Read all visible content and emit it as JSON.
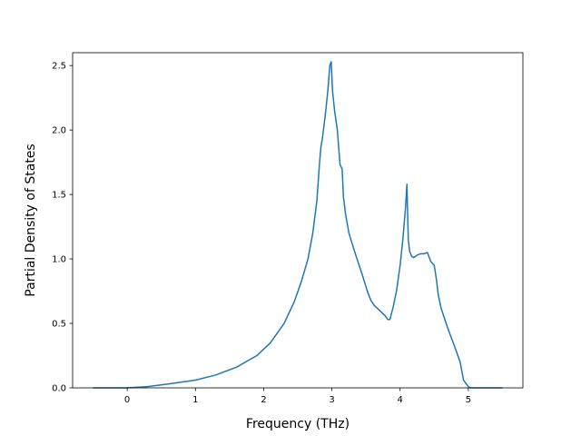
{
  "chart_data": {
    "type": "line",
    "title": "",
    "xlabel": "Frequency (THz)",
    "ylabel": "Partial Density of States",
    "xlim": [
      -0.8,
      5.8
    ],
    "ylim": [
      0.0,
      2.6
    ],
    "x_ticks": [
      0,
      1,
      2,
      3,
      4,
      5
    ],
    "x_tick_labels": [
      "0",
      "1",
      "2",
      "3",
      "4",
      "5"
    ],
    "y_ticks": [
      0.0,
      0.5,
      1.0,
      1.5,
      2.0,
      2.5
    ],
    "y_tick_labels": [
      "0.0",
      "0.5",
      "1.0",
      "1.5",
      "2.0",
      "2.5"
    ],
    "grid": false,
    "legend": false,
    "line_color": "#1f77b4",
    "series": [
      {
        "x": [
          -0.5,
          0.0,
          0.3,
          0.6,
          1.0,
          1.3,
          1.6,
          1.9,
          2.1,
          2.3,
          2.45,
          2.55,
          2.65,
          2.72,
          2.78,
          2.82,
          2.84,
          2.86,
          2.9,
          2.94,
          2.97,
          2.99,
          3.01,
          3.04,
          3.08,
          3.12,
          3.15,
          3.17,
          3.2,
          3.25,
          3.35,
          3.45,
          3.52,
          3.57,
          3.62,
          3.7,
          3.78,
          3.82,
          3.85,
          3.9,
          3.95,
          4.0,
          4.04,
          4.08,
          4.1,
          4.12,
          4.14,
          4.17,
          4.2,
          4.25,
          4.3,
          4.35,
          4.4,
          4.45,
          4.5,
          4.53,
          4.56,
          4.6,
          4.7,
          4.8,
          4.88,
          4.93,
          4.97,
          5.0,
          5.03,
          5.1,
          5.3,
          5.5
        ],
        "y": [
          0.0,
          0.0,
          0.01,
          0.03,
          0.06,
          0.1,
          0.16,
          0.25,
          0.35,
          0.5,
          0.67,
          0.82,
          1.0,
          1.2,
          1.45,
          1.75,
          1.87,
          1.93,
          2.1,
          2.3,
          2.5,
          2.53,
          2.3,
          2.15,
          2.0,
          1.73,
          1.7,
          1.48,
          1.35,
          1.2,
          1.03,
          0.87,
          0.75,
          0.68,
          0.64,
          0.6,
          0.56,
          0.53,
          0.53,
          0.63,
          0.76,
          0.95,
          1.15,
          1.4,
          1.58,
          1.15,
          1.06,
          1.02,
          1.01,
          1.03,
          1.04,
          1.04,
          1.05,
          0.98,
          0.95,
          0.85,
          0.72,
          0.62,
          0.46,
          0.32,
          0.2,
          0.06,
          0.03,
          0.01,
          0.0,
          0.0,
          0.0,
          0.0
        ]
      }
    ]
  }
}
